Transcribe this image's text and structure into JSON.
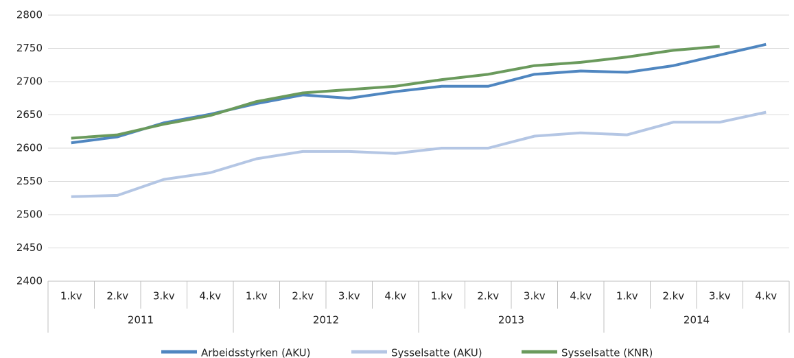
{
  "chart_data": {
    "type": "line",
    "categories": [
      "1.kv",
      "2.kv",
      "3.kv",
      "4.kv",
      "1.kv",
      "2.kv",
      "3.kv",
      "4.kv",
      "1.kv",
      "2.kv",
      "3.kv",
      "4.kv",
      "1.kv",
      "2.kv",
      "3.kv",
      "4.kv"
    ],
    "groups": [
      "2011",
      "2012",
      "2013",
      "2014"
    ],
    "series": [
      {
        "name": "Arbeidsstyrken (AKU)",
        "color": "#4f86c0",
        "values": [
          2608,
          2617,
          2638,
          2651,
          2667,
          2680,
          2675,
          2685,
          2693,
          2693,
          2711,
          2716,
          2714,
          2724,
          2740,
          2756
        ]
      },
      {
        "name": "Sysselsatte (AKU)",
        "color": "#b4c6e4",
        "values": [
          2527,
          2529,
          2553,
          2563,
          2584,
          2595,
          2595,
          2592,
          2600,
          2600,
          2618,
          2623,
          2620,
          2639,
          2639,
          2654
        ]
      },
      {
        "name": "Sysselsatte (KNR)",
        "color": "#6a9a5c",
        "values": [
          2615,
          2620,
          2636,
          2649,
          2670,
          2683,
          2688,
          2693,
          2703,
          2711,
          2724,
          2729,
          2737,
          2747,
          2753,
          null
        ]
      }
    ],
    "ylim": [
      2400,
      2800
    ],
    "yticks": [
      2400,
      2450,
      2500,
      2550,
      2600,
      2650,
      2700,
      2750,
      2800
    ],
    "grid": true,
    "legend": "bottom"
  }
}
